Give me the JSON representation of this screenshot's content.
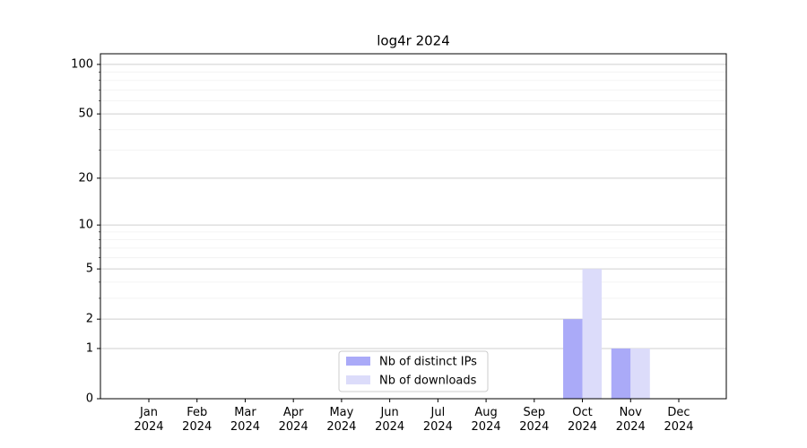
{
  "chart_data": {
    "type": "bar",
    "title": "log4r 2024",
    "categories": [
      "Jan\n2024",
      "Feb\n2024",
      "Mar\n2024",
      "Apr\n2024",
      "May\n2024",
      "Jun\n2024",
      "Jul\n2024",
      "Aug\n2024",
      "Sep\n2024",
      "Oct\n2024",
      "Nov\n2024",
      "Dec\n2024"
    ],
    "series": [
      {
        "name": "Nb of distinct IPs",
        "color": "#aaaaf8",
        "values": [
          0,
          0,
          0,
          0,
          0,
          0,
          0,
          0,
          0,
          2,
          1,
          0
        ]
      },
      {
        "name": "Nb of downloads",
        "color": "#dcdcfa",
        "values": [
          0,
          0,
          0,
          0,
          0,
          0,
          0,
          0,
          0,
          5,
          1,
          0
        ]
      }
    ],
    "yscale": "log1p",
    "ylim": [
      0,
      116
    ],
    "yticks": [
      0,
      1,
      2,
      5,
      10,
      20,
      50,
      100
    ],
    "yminorticks": [
      3,
      4,
      6,
      7,
      8,
      9,
      30,
      40,
      60,
      70,
      80,
      90
    ],
    "grid": true,
    "legend": "lower center"
  }
}
